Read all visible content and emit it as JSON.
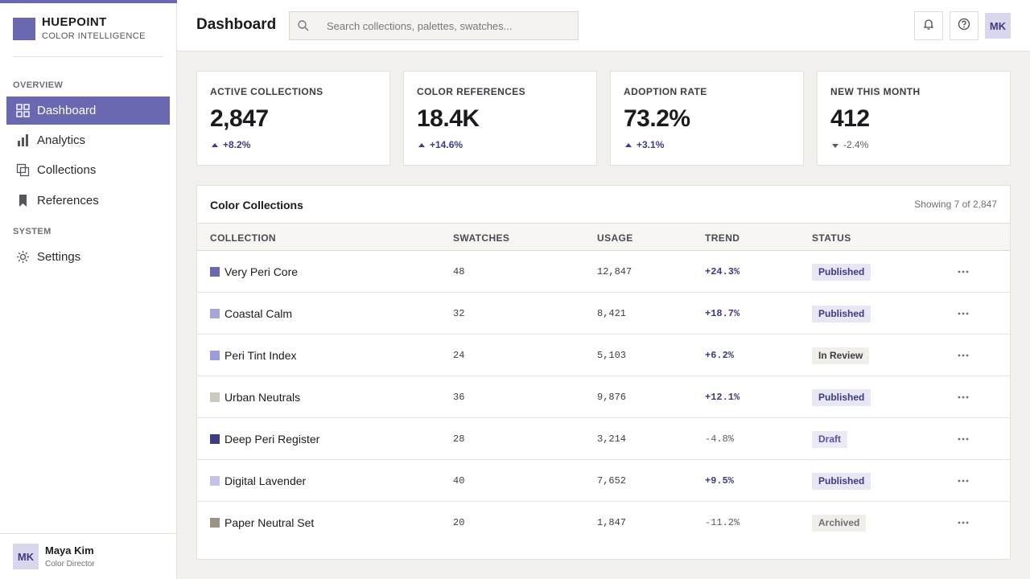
{
  "brand": {
    "name": "HUEPOINT",
    "subtitle": "COLOR INTELLIGENCE",
    "color": "#6a68b1"
  },
  "sidebar": {
    "sections": [
      {
        "label": "OVERVIEW"
      },
      {
        "label": "SYSTEM"
      }
    ],
    "items": [
      {
        "label": "Dashboard",
        "icon": "grid-icon",
        "active": true
      },
      {
        "label": "Analytics",
        "icon": "bar-chart-icon"
      },
      {
        "label": "Collections",
        "icon": "layers-icon"
      },
      {
        "label": "References",
        "icon": "bookmark-icon"
      },
      {
        "label": "Settings",
        "icon": "gear-icon"
      }
    ],
    "user": {
      "initials": "MK",
      "name": "Maya Kim",
      "role": "Color Director"
    }
  },
  "header": {
    "title": "Dashboard",
    "search_placeholder": "Search collections, palettes, swatches...",
    "avatar_initials": "MK"
  },
  "stats": [
    {
      "label": "ACTIVE COLLECTIONS",
      "value": "2,847",
      "delta": "+8.2%",
      "direction": "up"
    },
    {
      "label": "COLOR REFERENCES",
      "value": "18.4K",
      "delta": "+14.6%",
      "direction": "up"
    },
    {
      "label": "ADOPTION RATE",
      "value": "73.2%",
      "delta": "+3.1%",
      "direction": "up"
    },
    {
      "label": "NEW THIS MONTH",
      "value": "412",
      "delta": "-2.4%",
      "direction": "down"
    }
  ],
  "table": {
    "title": "Color Collections",
    "meta": "Showing 7 of 2,847",
    "columns": [
      "COLLECTION",
      "SWATCHES",
      "USAGE",
      "TREND",
      "STATUS"
    ],
    "rows": [
      {
        "name": "Very Peri Core",
        "swatch": "#6a68b1",
        "swatches": "48",
        "usage": "12,847",
        "trend": "+24.3%",
        "trend_dir": "up",
        "status": "Published",
        "status_kind": "published"
      },
      {
        "name": "Coastal Calm",
        "swatch": "#a6a5d6",
        "swatches": "32",
        "usage": "8,421",
        "trend": "+18.7%",
        "trend_dir": "up",
        "status": "Published",
        "status_kind": "published"
      },
      {
        "name": "Peri Tint Index",
        "swatch": "#9d9bdc",
        "swatches": "24",
        "usage": "5,103",
        "trend": "+6.2%",
        "trend_dir": "up",
        "status": "In Review",
        "status_kind": "review"
      },
      {
        "name": "Urban Neutrals",
        "swatch": "#cdc8bd",
        "swatches": "36",
        "usage": "9,876",
        "trend": "+12.1%",
        "trend_dir": "up",
        "status": "Published",
        "status_kind": "published"
      },
      {
        "name": "Deep Peri Register",
        "swatch": "#3e3c85",
        "swatches": "28",
        "usage": "3,214",
        "trend": "-4.8%",
        "trend_dir": "down",
        "status": "Draft",
        "status_kind": "draft"
      },
      {
        "name": "Digital Lavender",
        "swatch": "#c4c2e6",
        "swatches": "40",
        "usage": "7,652",
        "trend": "+9.5%",
        "trend_dir": "up",
        "status": "Published",
        "status_kind": "published"
      },
      {
        "name": "Paper Neutral Set",
        "swatch": "#9a9285",
        "swatches": "20",
        "usage": "1,847",
        "trend": "-11.2%",
        "trend_dir": "down",
        "status": "Archived",
        "status_kind": "archived"
      }
    ]
  }
}
